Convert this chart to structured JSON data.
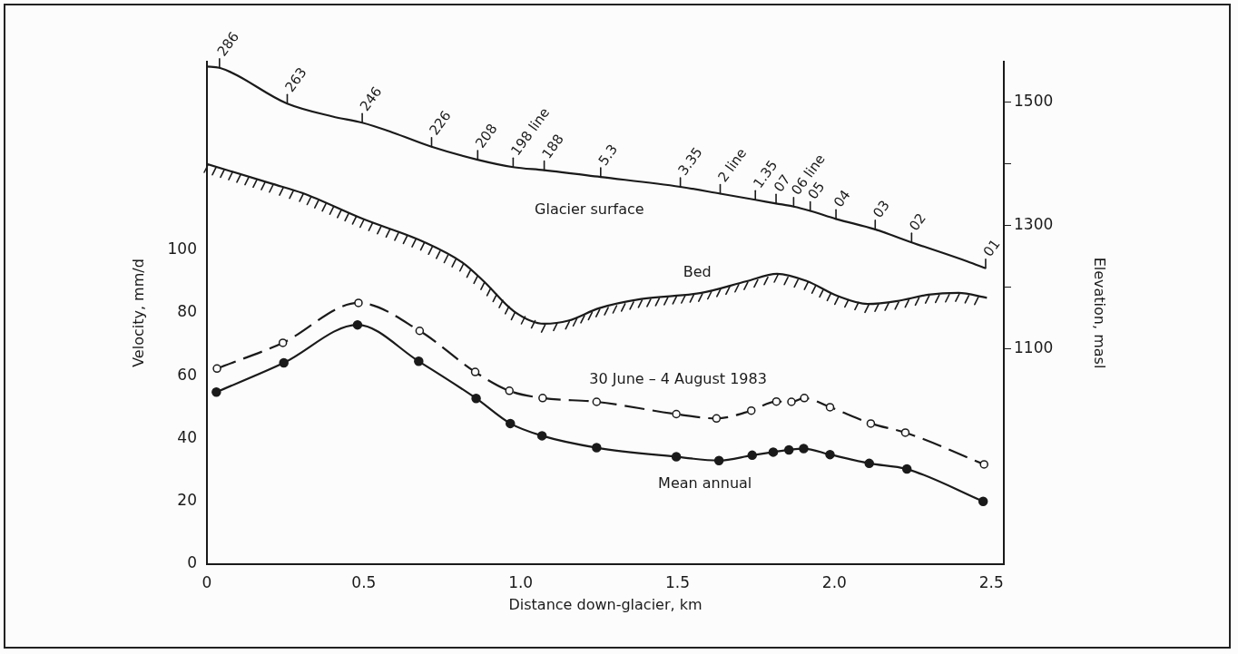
{
  "chart_data": {
    "type": "line",
    "xlabel": "Distance down-glacier, km",
    "ylabel": "Velocity, mm/d",
    "y2label": "Elevation, masl",
    "xlim": [
      0,
      2.54
    ],
    "xticks": [
      0,
      0.5,
      {
        "value": 1,
        "label": "1.0"
      },
      1.5,
      {
        "value": 2,
        "label": "2.0"
      },
      2.5
    ],
    "ylim": [
      0,
      160
    ],
    "yticks": [
      0,
      20,
      40,
      60,
      80,
      100
    ],
    "y2lim": [
      750,
      1565
    ],
    "y2ticks": [
      1100,
      {
        "value": 1200,
        "label": null
      },
      1300,
      {
        "value": 1400,
        "label": null
      },
      1500
    ],
    "grid": false,
    "legend": false,
    "series": [
      {
        "name": "Glacier surface",
        "color": "#1a1a1a",
        "axis": "y2",
        "marker": "none",
        "line_style": "solid",
        "x": [
          0,
          0.04,
          0.256,
          0.401,
          0.495,
          0.593,
          0.716,
          0.863,
          0.976,
          1.075,
          1.255,
          1.509,
          1.636,
          1.748,
          1.814,
          1.87,
          1.923,
          2.005,
          2.13,
          2.246,
          2.424,
          2.482
        ],
        "values": [
          1557,
          1555,
          1497,
          1476,
          1466,
          1450,
          1427,
          1406,
          1394,
          1389,
          1378,
          1362,
          1351,
          1341,
          1335,
          1330,
          1323,
          1310,
          1293,
          1272,
          1241,
          1230
        ]
      },
      {
        "name": "Bed",
        "color": "#1a1a1a",
        "axis": "y2",
        "marker": "none",
        "line_style": "solid",
        "x": [
          0,
          0.208,
          0.304,
          0.497,
          0.69,
          0.815,
          0.882,
          0.979,
          1.075,
          1.152,
          1.249,
          1.384,
          1.576,
          1.721,
          1.817,
          1.913,
          2.01,
          2.106,
          2.202,
          2.299,
          2.395,
          2.486
        ],
        "values": [
          1399,
          1367,
          1352,
          1310,
          1273,
          1239,
          1209,
          1160,
          1140,
          1145,
          1165,
          1180,
          1190,
          1209,
          1221,
          1209,
          1185,
          1172,
          1177,
          1187,
          1190,
          1182
        ]
      },
      {
        "name": "30 June – 4 August 1983",
        "color": "#1a1a1a",
        "marker": "circle",
        "line_style": "dashed",
        "x": [
          0.032,
          0.242,
          0.483,
          0.678,
          0.855,
          0.964,
          1.07,
          1.242,
          1.496,
          1.624,
          1.735,
          1.815,
          1.863,
          1.904,
          1.986,
          2.116,
          2.226,
          2.477
        ],
        "values": [
          62.3,
          70.5,
          83.2,
          74.3,
          61.2,
          55.2,
          52.9,
          51.7,
          47.8,
          46.4,
          48.9,
          51.8,
          51.7,
          52.9,
          50.0,
          44.8,
          41.9,
          31.8
        ]
      },
      {
        "name": "Mean annual",
        "color": "#1a1a1a",
        "marker": "circle",
        "line_style": "solid",
        "x": [
          0.03,
          0.245,
          0.48,
          0.675,
          0.858,
          0.967,
          1.068,
          1.242,
          1.496,
          1.632,
          1.738,
          1.805,
          1.855,
          1.902,
          1.986,
          2.111,
          2.231,
          2.474
        ],
        "values": [
          54.8,
          64.1,
          76.2,
          64.6,
          52.8,
          44.8,
          40.9,
          37.1,
          34.2,
          33.0,
          34.7,
          35.7,
          36.4,
          36.8,
          34.9,
          32.1,
          30.3,
          20.0
        ]
      }
    ],
    "annotations": [
      "286",
      "263",
      "246",
      "226",
      "208",
      "198 line",
      "188",
      "5.3",
      "3.35",
      "2 line",
      "1.35",
      "07",
      "06 line",
      "05",
      "04",
      "03",
      "02",
      "01"
    ]
  }
}
